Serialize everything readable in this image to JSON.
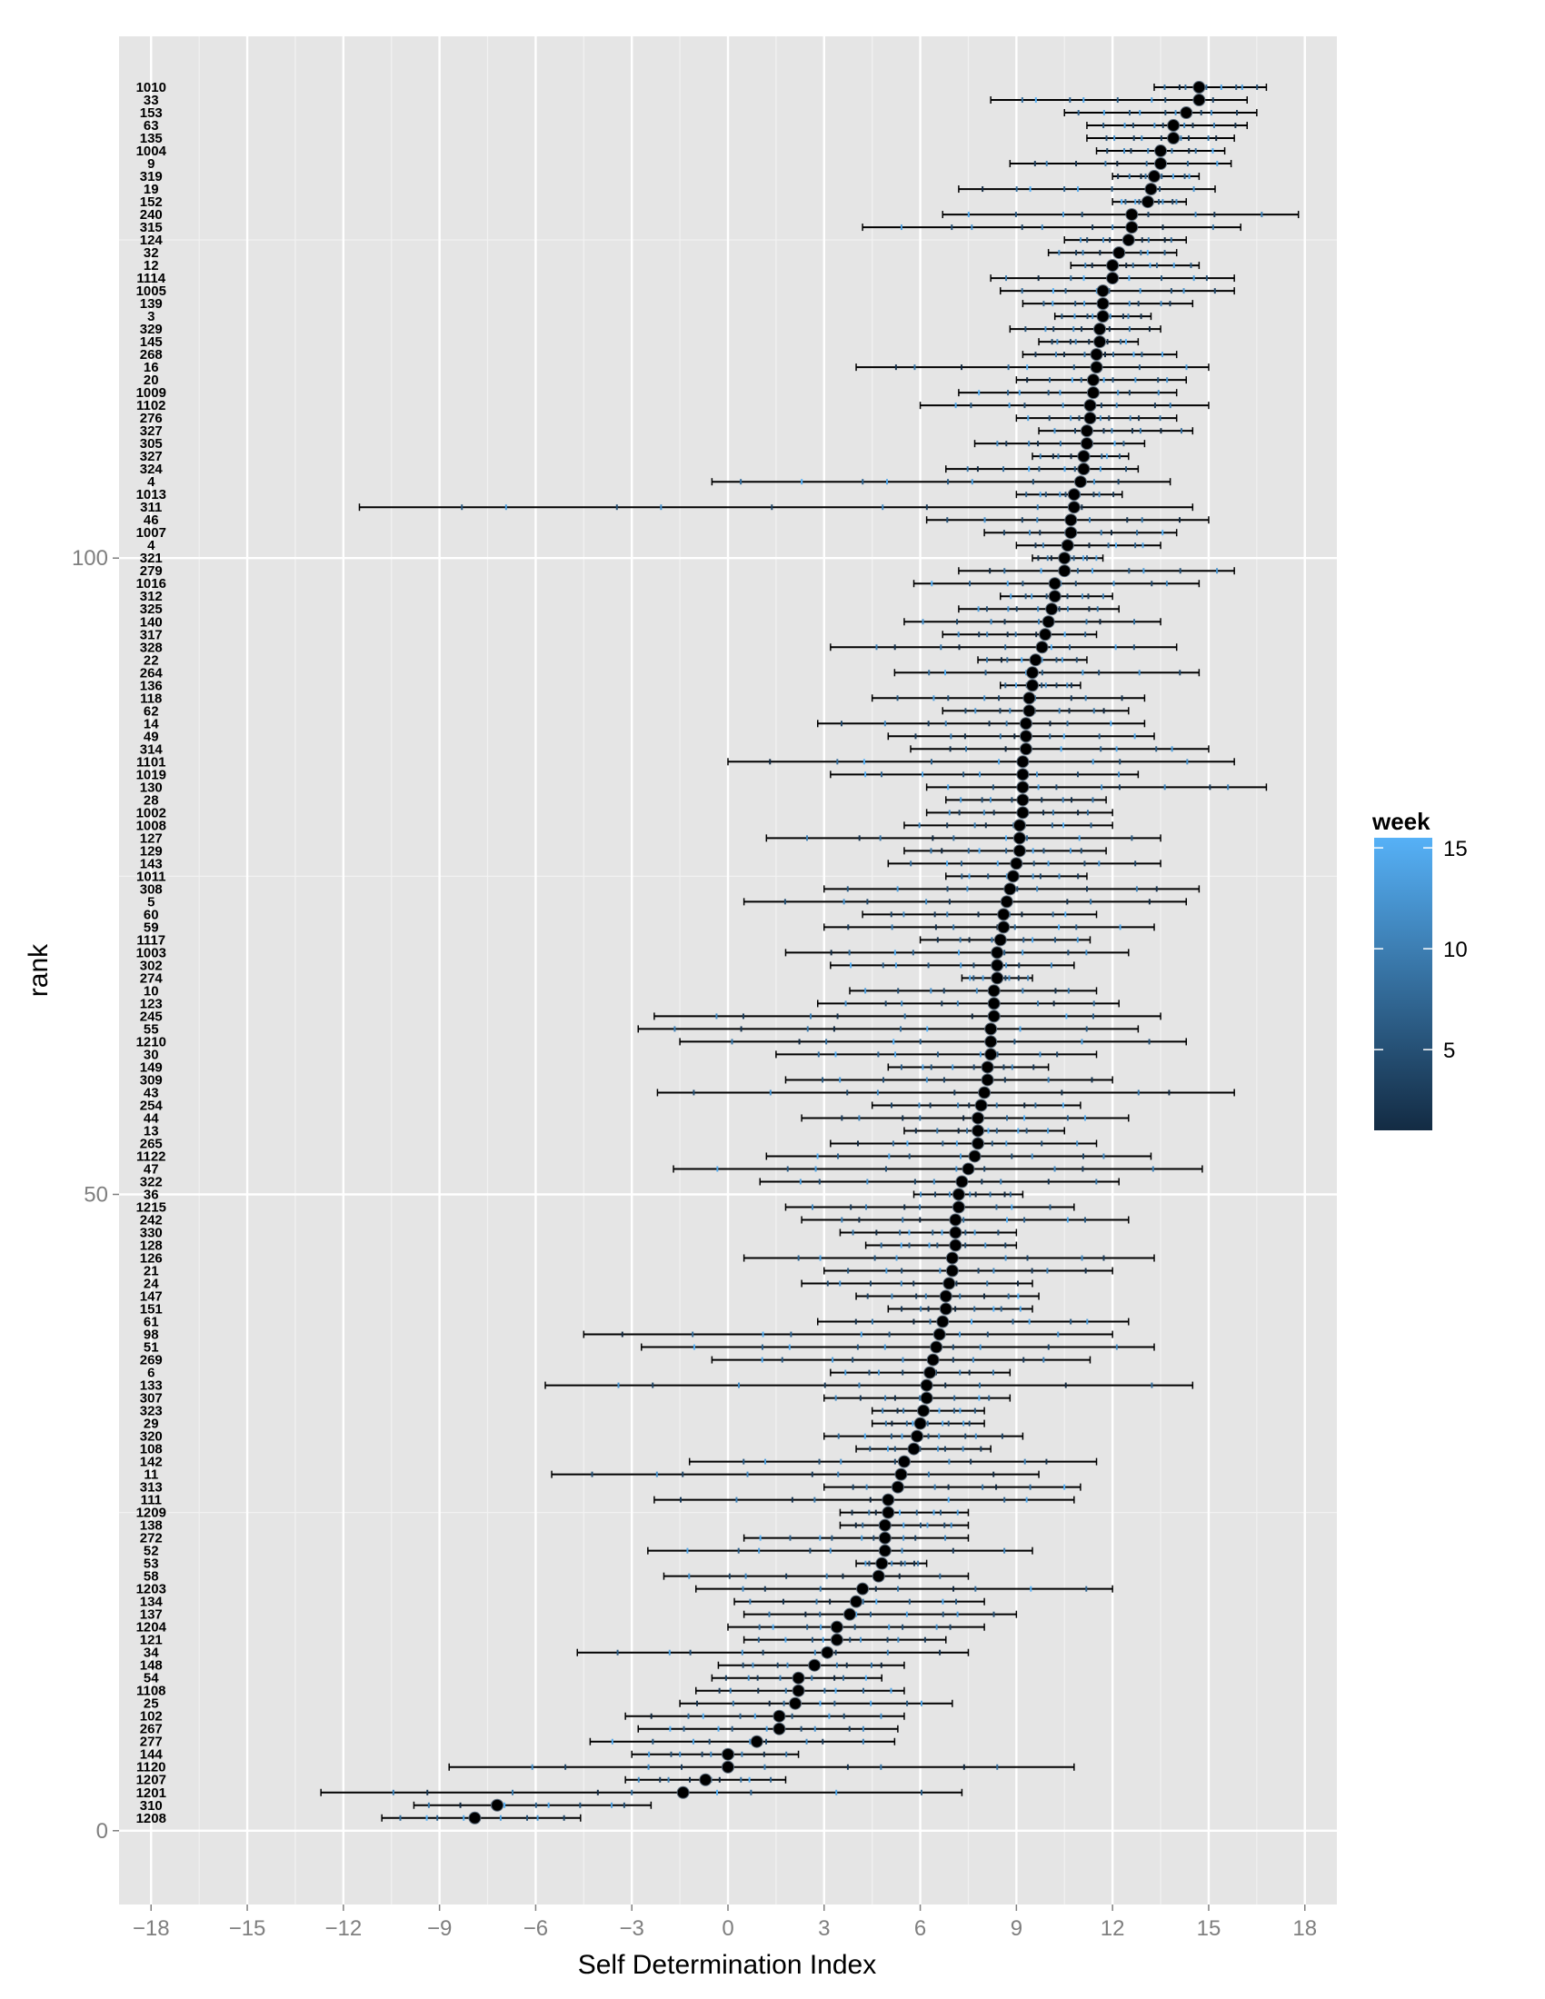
{
  "chart_data": {
    "type": "scatter",
    "xlabel": "Self Determination Index",
    "ylabel": "rank",
    "xlim": [
      -19,
      19
    ],
    "ylim": [
      -5.8,
      141
    ],
    "x_ticks": [
      -18,
      -15,
      -12,
      -9,
      -6,
      -3,
      0,
      3,
      6,
      9,
      12,
      15,
      18
    ],
    "x_tick_labels": [
      "−18",
      "−15",
      "−12",
      "−9",
      "−6",
      "−3",
      "0",
      "3",
      "6",
      "9",
      "12",
      "15",
      "18"
    ],
    "y_ticks": [
      0,
      50,
      100
    ],
    "y_tick_labels": [
      "0",
      "50",
      "100"
    ],
    "grid": true,
    "legend": {
      "title": "week",
      "position": "right",
      "range": [
        1,
        15.5
      ],
      "ticks": [
        5,
        10,
        15
      ],
      "tick_labels": [
        "5",
        "10",
        "15"
      ],
      "low_color": "#132b43",
      "high_color": "#56b1f7"
    },
    "point_color": "#000000",
    "panel_color": "#e5e5e5",
    "rows": [
      {
        "rank": 1,
        "label": "1208",
        "mean": -7.9,
        "min": -10.8,
        "max": -4.6
      },
      {
        "rank": 2,
        "label": "310",
        "mean": -7.2,
        "min": -9.8,
        "max": -2.4
      },
      {
        "rank": 3,
        "label": "1201",
        "mean": -1.4,
        "min": -12.7,
        "max": 7.3
      },
      {
        "rank": 4,
        "label": "1207",
        "mean": -0.7,
        "min": -3.2,
        "max": 1.8
      },
      {
        "rank": 5,
        "label": "1120",
        "mean": 0.0,
        "min": -8.7,
        "max": 10.8
      },
      {
        "rank": 6,
        "label": "144",
        "mean": 0.0,
        "min": -3.0,
        "max": 2.2
      },
      {
        "rank": 7,
        "label": "277",
        "mean": 0.9,
        "min": -4.3,
        "max": 5.2
      },
      {
        "rank": 8,
        "label": "267",
        "mean": 1.6,
        "min": -2.8,
        "max": 5.3
      },
      {
        "rank": 9,
        "label": "102",
        "mean": 1.6,
        "min": -3.2,
        "max": 5.5
      },
      {
        "rank": 10,
        "label": "25",
        "mean": 2.1,
        "min": -1.5,
        "max": 7.0
      },
      {
        "rank": 11,
        "label": "1108",
        "mean": 2.2,
        "min": -1.0,
        "max": 5.5
      },
      {
        "rank": 12,
        "label": "54",
        "mean": 2.2,
        "min": -0.5,
        "max": 4.8
      },
      {
        "rank": 13,
        "label": "148",
        "mean": 2.7,
        "min": -0.3,
        "max": 5.5
      },
      {
        "rank": 14,
        "label": "34",
        "mean": 3.1,
        "min": -4.7,
        "max": 7.5
      },
      {
        "rank": 15,
        "label": "121",
        "mean": 3.4,
        "min": 0.5,
        "max": 6.8
      },
      {
        "rank": 16,
        "label": "1204",
        "mean": 3.4,
        "min": 0.0,
        "max": 8.0
      },
      {
        "rank": 17,
        "label": "137",
        "mean": 3.8,
        "min": 0.5,
        "max": 9.0
      },
      {
        "rank": 18,
        "label": "134",
        "mean": 4.0,
        "min": 0.2,
        "max": 8.0
      },
      {
        "rank": 19,
        "label": "1203",
        "mean": 4.2,
        "min": -1.0,
        "max": 12.0
      },
      {
        "rank": 20,
        "label": "58",
        "mean": 4.7,
        "min": -2.0,
        "max": 7.5
      },
      {
        "rank": 21,
        "label": "53",
        "mean": 4.8,
        "min": 4.0,
        "max": 6.2
      },
      {
        "rank": 22,
        "label": "52",
        "mean": 4.9,
        "min": -2.5,
        "max": 9.5
      },
      {
        "rank": 23,
        "label": "272",
        "mean": 4.9,
        "min": 0.5,
        "max": 7.5
      },
      {
        "rank": 24,
        "label": "138",
        "mean": 4.9,
        "min": 3.5,
        "max": 7.5
      },
      {
        "rank": 25,
        "label": "1209",
        "mean": 5.0,
        "min": 3.5,
        "max": 7.5
      },
      {
        "rank": 26,
        "label": "111",
        "mean": 5.0,
        "min": -2.3,
        "max": 10.8
      },
      {
        "rank": 27,
        "label": "313",
        "mean": 5.3,
        "min": 3.0,
        "max": 11.0
      },
      {
        "rank": 28,
        "label": "11",
        "mean": 5.4,
        "min": -5.5,
        "max": 9.7
      },
      {
        "rank": 29,
        "label": "142",
        "mean": 5.5,
        "min": -1.2,
        "max": 11.5
      },
      {
        "rank": 30,
        "label": "108",
        "mean": 5.8,
        "min": 4.0,
        "max": 8.2
      },
      {
        "rank": 31,
        "label": "320",
        "mean": 5.9,
        "min": 3.0,
        "max": 9.2
      },
      {
        "rank": 32,
        "label": "29",
        "mean": 6.0,
        "min": 4.5,
        "max": 8.0
      },
      {
        "rank": 33,
        "label": "323",
        "mean": 6.1,
        "min": 4.5,
        "max": 8.0
      },
      {
        "rank": 34,
        "label": "307",
        "mean": 6.2,
        "min": 3.0,
        "max": 8.8
      },
      {
        "rank": 35,
        "label": "133",
        "mean": 6.2,
        "min": -5.7,
        "max": 14.5
      },
      {
        "rank": 36,
        "label": "6",
        "mean": 6.3,
        "min": 3.2,
        "max": 8.8
      },
      {
        "rank": 37,
        "label": "269",
        "mean": 6.4,
        "min": -0.5,
        "max": 11.3
      },
      {
        "rank": 38,
        "label": "51",
        "mean": 6.5,
        "min": -2.7,
        "max": 13.3
      },
      {
        "rank": 39,
        "label": "98",
        "mean": 6.6,
        "min": -4.5,
        "max": 12.0
      },
      {
        "rank": 40,
        "label": "61",
        "mean": 6.7,
        "min": 2.8,
        "max": 12.5
      },
      {
        "rank": 41,
        "label": "151",
        "mean": 6.8,
        "min": 5.0,
        "max": 9.5
      },
      {
        "rank": 42,
        "label": "147",
        "mean": 6.8,
        "min": 4.0,
        "max": 9.7
      },
      {
        "rank": 43,
        "label": "24",
        "mean": 6.9,
        "min": 2.3,
        "max": 9.5
      },
      {
        "rank": 44,
        "label": "21",
        "mean": 7.0,
        "min": 3.0,
        "max": 12.0
      },
      {
        "rank": 45,
        "label": "126",
        "mean": 7.0,
        "min": 0.5,
        "max": 13.3
      },
      {
        "rank": 46,
        "label": "128",
        "mean": 7.1,
        "min": 4.3,
        "max": 9.0
      },
      {
        "rank": 47,
        "label": "330",
        "mean": 7.1,
        "min": 3.5,
        "max": 9.0
      },
      {
        "rank": 48,
        "label": "242",
        "mean": 7.1,
        "min": 2.3,
        "max": 12.5
      },
      {
        "rank": 49,
        "label": "1215",
        "mean": 7.2,
        "min": 1.8,
        "max": 10.8
      },
      {
        "rank": 50,
        "label": "36",
        "mean": 7.2,
        "min": 5.8,
        "max": 9.2
      },
      {
        "rank": 51,
        "label": "322",
        "mean": 7.3,
        "min": 1.0,
        "max": 12.2
      },
      {
        "rank": 52,
        "label": "47",
        "mean": 7.5,
        "min": -1.7,
        "max": 14.8
      },
      {
        "rank": 53,
        "label": "1122",
        "mean": 7.7,
        "min": 1.2,
        "max": 13.2
      },
      {
        "rank": 54,
        "label": "265",
        "mean": 7.8,
        "min": 3.2,
        "max": 11.5
      },
      {
        "rank": 55,
        "label": "13",
        "mean": 7.8,
        "min": 5.5,
        "max": 10.5
      },
      {
        "rank": 56,
        "label": "44",
        "mean": 7.8,
        "min": 2.3,
        "max": 12.5
      },
      {
        "rank": 57,
        "label": "254",
        "mean": 7.9,
        "min": 4.5,
        "max": 11.0
      },
      {
        "rank": 58,
        "label": "43",
        "mean": 8.0,
        "min": -2.2,
        "max": 15.8
      },
      {
        "rank": 59,
        "label": "309",
        "mean": 8.1,
        "min": 1.8,
        "max": 12.0
      },
      {
        "rank": 60,
        "label": "149",
        "mean": 8.1,
        "min": 5.0,
        "max": 10.0
      },
      {
        "rank": 61,
        "label": "30",
        "mean": 8.2,
        "min": 1.5,
        "max": 11.5
      },
      {
        "rank": 62,
        "label": "1210",
        "mean": 8.2,
        "min": -1.5,
        "max": 14.3
      },
      {
        "rank": 63,
        "label": "55",
        "mean": 8.2,
        "min": -2.8,
        "max": 12.8
      },
      {
        "rank": 64,
        "label": "245",
        "mean": 8.3,
        "min": -2.3,
        "max": 13.5
      },
      {
        "rank": 65,
        "label": "123",
        "mean": 8.3,
        "min": 2.8,
        "max": 12.2
      },
      {
        "rank": 66,
        "label": "10",
        "mean": 8.3,
        "min": 3.8,
        "max": 11.5
      },
      {
        "rank": 67,
        "label": "274",
        "mean": 8.4,
        "min": 7.3,
        "max": 9.5
      },
      {
        "rank": 68,
        "label": "302",
        "mean": 8.4,
        "min": 3.2,
        "max": 10.8
      },
      {
        "rank": 69,
        "label": "1003",
        "mean": 8.4,
        "min": 1.8,
        "max": 12.5
      },
      {
        "rank": 70,
        "label": "1117",
        "mean": 8.5,
        "min": 6.0,
        "max": 11.3
      },
      {
        "rank": 71,
        "label": "59",
        "mean": 8.6,
        "min": 3.0,
        "max": 13.3
      },
      {
        "rank": 72,
        "label": "60",
        "mean": 8.6,
        "min": 4.2,
        "max": 11.5
      },
      {
        "rank": 73,
        "label": "5",
        "mean": 8.7,
        "min": 0.5,
        "max": 14.3
      },
      {
        "rank": 74,
        "label": "308",
        "mean": 8.8,
        "min": 3.0,
        "max": 14.7
      },
      {
        "rank": 75,
        "label": "1011",
        "mean": 8.9,
        "min": 6.8,
        "max": 11.2
      },
      {
        "rank": 76,
        "label": "143",
        "mean": 9.0,
        "min": 5.0,
        "max": 13.5
      },
      {
        "rank": 77,
        "label": "129",
        "mean": 9.1,
        "min": 5.5,
        "max": 11.8
      },
      {
        "rank": 78,
        "label": "127",
        "mean": 9.1,
        "min": 1.2,
        "max": 13.5
      },
      {
        "rank": 79,
        "label": "1008",
        "mean": 9.1,
        "min": 5.5,
        "max": 12.0
      },
      {
        "rank": 80,
        "label": "1002",
        "mean": 9.2,
        "min": 6.2,
        "max": 12.0
      },
      {
        "rank": 81,
        "label": "28",
        "mean": 9.2,
        "min": 6.8,
        "max": 11.8
      },
      {
        "rank": 82,
        "label": "130",
        "mean": 9.2,
        "min": 6.2,
        "max": 16.8
      },
      {
        "rank": 83,
        "label": "1019",
        "mean": 9.2,
        "min": 3.2,
        "max": 12.8
      },
      {
        "rank": 84,
        "label": "1101",
        "mean": 9.2,
        "min": 0.0,
        "max": 15.8
      },
      {
        "rank": 85,
        "label": "314",
        "mean": 9.3,
        "min": 5.7,
        "max": 15.0
      },
      {
        "rank": 86,
        "label": "49",
        "mean": 9.3,
        "min": 5.0,
        "max": 13.3
      },
      {
        "rank": 87,
        "label": "14",
        "mean": 9.3,
        "min": 2.8,
        "max": 13.0
      },
      {
        "rank": 88,
        "label": "62",
        "mean": 9.4,
        "min": 6.7,
        "max": 12.5
      },
      {
        "rank": 89,
        "label": "118",
        "mean": 9.4,
        "min": 4.5,
        "max": 13.0
      },
      {
        "rank": 90,
        "label": "136",
        "mean": 9.5,
        "min": 8.5,
        "max": 11.0
      },
      {
        "rank": 91,
        "label": "264",
        "mean": 9.5,
        "min": 5.2,
        "max": 14.7
      },
      {
        "rank": 92,
        "label": "22",
        "mean": 9.6,
        "min": 7.8,
        "max": 11.2
      },
      {
        "rank": 93,
        "label": "328",
        "mean": 9.8,
        "min": 3.2,
        "max": 14.0
      },
      {
        "rank": 94,
        "label": "317",
        "mean": 9.9,
        "min": 6.7,
        "max": 11.5
      },
      {
        "rank": 95,
        "label": "140",
        "mean": 10.0,
        "min": 5.5,
        "max": 13.5
      },
      {
        "rank": 96,
        "label": "325",
        "mean": 10.1,
        "min": 7.2,
        "max": 12.2
      },
      {
        "rank": 97,
        "label": "312",
        "mean": 10.2,
        "min": 8.5,
        "max": 12.0
      },
      {
        "rank": 98,
        "label": "1016",
        "mean": 10.2,
        "min": 5.8,
        "max": 14.7
      },
      {
        "rank": 99,
        "label": "279",
        "mean": 10.5,
        "min": 7.2,
        "max": 15.8
      },
      {
        "rank": 100,
        "label": "321",
        "mean": 10.5,
        "min": 9.5,
        "max": 11.7
      },
      {
        "rank": 101,
        "label": "4",
        "mean": 10.6,
        "min": 9.0,
        "max": 13.5
      },
      {
        "rank": 102,
        "label": "1007",
        "mean": 10.7,
        "min": 8.0,
        "max": 14.0
      },
      {
        "rank": 103,
        "label": "46",
        "mean": 10.7,
        "min": 6.2,
        "max": 15.0
      },
      {
        "rank": 104,
        "label": "311",
        "mean": 10.8,
        "min": -11.5,
        "max": 14.5
      },
      {
        "rank": 105,
        "label": "1013",
        "mean": 10.8,
        "min": 9.0,
        "max": 12.3
      },
      {
        "rank": 106,
        "label": "4",
        "mean": 11.0,
        "min": -0.5,
        "max": 13.8
      },
      {
        "rank": 107,
        "label": "324",
        "mean": 11.1,
        "min": 6.8,
        "max": 12.8
      },
      {
        "rank": 108,
        "label": "327",
        "mean": 11.1,
        "min": 9.5,
        "max": 12.5
      },
      {
        "rank": 109,
        "label": "305",
        "mean": 11.2,
        "min": 7.7,
        "max": 13.0
      },
      {
        "rank": 110,
        "label": "327",
        "mean": 11.2,
        "min": 9.7,
        "max": 14.5
      },
      {
        "rank": 111,
        "label": "276",
        "mean": 11.3,
        "min": 9.0,
        "max": 14.0
      },
      {
        "rank": 112,
        "label": "1102",
        "mean": 11.3,
        "min": 6.0,
        "max": 15.0
      },
      {
        "rank": 113,
        "label": "1009",
        "mean": 11.4,
        "min": 7.2,
        "max": 14.0
      },
      {
        "rank": 114,
        "label": "20",
        "mean": 11.4,
        "min": 9.0,
        "max": 14.3
      },
      {
        "rank": 115,
        "label": "16",
        "mean": 11.5,
        "min": 4.0,
        "max": 15.0
      },
      {
        "rank": 116,
        "label": "268",
        "mean": 11.5,
        "min": 9.2,
        "max": 14.0
      },
      {
        "rank": 117,
        "label": "145",
        "mean": 11.6,
        "min": 9.7,
        "max": 12.8
      },
      {
        "rank": 118,
        "label": "329",
        "mean": 11.6,
        "min": 8.8,
        "max": 13.5
      },
      {
        "rank": 119,
        "label": "3",
        "mean": 11.7,
        "min": 10.2,
        "max": 13.2
      },
      {
        "rank": 120,
        "label": "139",
        "mean": 11.7,
        "min": 9.2,
        "max": 14.5
      },
      {
        "rank": 121,
        "label": "1005",
        "mean": 11.7,
        "min": 8.5,
        "max": 15.8
      },
      {
        "rank": 122,
        "label": "1114",
        "mean": 12.0,
        "min": 8.2,
        "max": 15.8
      },
      {
        "rank": 123,
        "label": "12",
        "mean": 12.0,
        "min": 10.7,
        "max": 14.7
      },
      {
        "rank": 124,
        "label": "32",
        "mean": 12.2,
        "min": 10.0,
        "max": 14.0
      },
      {
        "rank": 125,
        "label": "124",
        "mean": 12.5,
        "min": 10.5,
        "max": 14.3
      },
      {
        "rank": 126,
        "label": "315",
        "mean": 12.6,
        "min": 4.2,
        "max": 16.0
      },
      {
        "rank": 127,
        "label": "240",
        "mean": 12.6,
        "min": 6.7,
        "max": 17.8
      },
      {
        "rank": 128,
        "label": "152",
        "mean": 13.1,
        "min": 12.0,
        "max": 14.3
      },
      {
        "rank": 129,
        "label": "19",
        "mean": 13.2,
        "min": 7.2,
        "max": 15.2
      },
      {
        "rank": 130,
        "label": "319",
        "mean": 13.3,
        "min": 12.0,
        "max": 14.7
      },
      {
        "rank": 131,
        "label": "9",
        "mean": 13.5,
        "min": 8.8,
        "max": 15.7
      },
      {
        "rank": 132,
        "label": "1004",
        "mean": 13.5,
        "min": 11.5,
        "max": 15.5
      },
      {
        "rank": 133,
        "label": "135",
        "mean": 13.9,
        "min": 11.2,
        "max": 15.8
      },
      {
        "rank": 134,
        "label": "63",
        "mean": 13.9,
        "min": 11.2,
        "max": 16.2
      },
      {
        "rank": 135,
        "label": "153",
        "mean": 14.3,
        "min": 10.5,
        "max": 16.5
      },
      {
        "rank": 136,
        "label": "33",
        "mean": 14.7,
        "min": 8.2,
        "max": 16.2
      },
      {
        "rank": 137,
        "label": "1010",
        "mean": 14.7,
        "min": 13.3,
        "max": 16.8
      }
    ]
  }
}
